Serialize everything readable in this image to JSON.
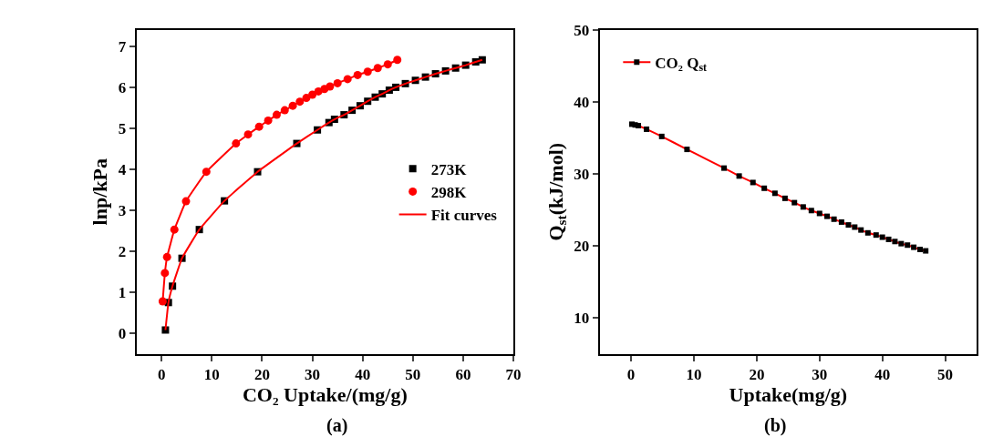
{
  "chart_data": [
    {
      "type": "scatter",
      "xlabel": "CO₂ Uptake/(mg/g)",
      "ylabel": "lnp/kPa",
      "xlim": [
        -5,
        70
      ],
      "ylim": [
        -0.5,
        7.4
      ],
      "xticks": [
        0,
        10,
        20,
        30,
        40,
        50,
        60,
        70
      ],
      "yticks": [
        0,
        1,
        2,
        3,
        4,
        5,
        6,
        7
      ],
      "grid": false,
      "legend": "right",
      "annotations": [
        "(a)"
      ],
      "series": [
        {
          "name": "273K",
          "color": "#000000",
          "marker": "square",
          "x": [
            0.76,
            1.35,
            2.16,
            4.05,
            7.5,
            12.5,
            19.1,
            26.9,
            31,
            33.3,
            34.4,
            36.3,
            37.9,
            39.5,
            41,
            42.5,
            43.9,
            45.3,
            46.6,
            48.5,
            50.5,
            52.5,
            54.5,
            56.5,
            58.5,
            60.5,
            62.5,
            63.8
          ],
          "values": [
            0.08,
            0.75,
            1.15,
            1.83,
            2.53,
            3.23,
            3.94,
            4.63,
            4.96,
            5.14,
            5.22,
            5.33,
            5.44,
            5.55,
            5.66,
            5.76,
            5.84,
            5.93,
            6.0,
            6.09,
            6.17,
            6.25,
            6.33,
            6.4,
            6.47,
            6.54,
            6.62,
            6.67
          ]
        },
        {
          "name": "298K",
          "color": "#ff0000",
          "marker": "circle",
          "x": [
            0.21,
            0.65,
            1.08,
            2.54,
            4.85,
            8.9,
            14.8,
            17.2,
            19.4,
            21.2,
            22.9,
            24.5,
            26.1,
            27.5,
            28.8,
            30.0,
            31.2,
            32.4,
            33.5,
            35,
            37,
            39,
            41,
            43,
            45,
            46.9
          ],
          "values": [
            0.78,
            1.47,
            1.86,
            2.53,
            3.22,
            3.94,
            4.63,
            4.85,
            5.04,
            5.19,
            5.33,
            5.44,
            5.55,
            5.65,
            5.74,
            5.82,
            5.9,
            5.96,
            6.02,
            6.1,
            6.2,
            6.3,
            6.38,
            6.47,
            6.56,
            6.67
          ]
        },
        {
          "name": "Fit curves",
          "type": "line",
          "color": "#ff0000",
          "x": [
            0.76,
            1.35,
            2.16,
            4.05,
            7.5,
            12.5,
            19.1,
            26.9,
            31,
            33.3,
            34.4,
            36.3,
            37.9,
            39.5,
            41,
            42.5,
            43.9,
            45.3,
            46.6,
            48.5,
            50.5,
            52.5,
            54.5,
            56.5,
            58.5,
            60.5,
            62.5,
            63.8
          ],
          "values": [
            0.08,
            0.75,
            1.15,
            1.83,
            2.53,
            3.23,
            3.94,
            4.63,
            4.96,
            5.14,
            5.22,
            5.33,
            5.44,
            5.55,
            5.66,
            5.76,
            5.84,
            5.93,
            6.0,
            6.09,
            6.17,
            6.25,
            6.33,
            6.4,
            6.47,
            6.54,
            6.62,
            6.67
          ]
        },
        {
          "type": "line",
          "color": "#ff0000",
          "x": [
            0.21,
            0.65,
            1.08,
            2.54,
            4.85,
            8.9,
            14.8,
            17.2,
            19.4,
            21.2,
            22.9,
            24.5,
            26.1,
            27.5,
            28.8,
            30.0,
            31.2,
            32.4,
            33.5,
            35,
            37,
            39,
            41,
            43,
            45,
            46.9
          ],
          "values": [
            0.78,
            1.47,
            1.86,
            2.53,
            3.22,
            3.94,
            4.63,
            4.85,
            5.04,
            5.19,
            5.33,
            5.44,
            5.55,
            5.65,
            5.74,
            5.82,
            5.9,
            5.96,
            6.02,
            6.1,
            6.2,
            6.3,
            6.38,
            6.47,
            6.56,
            6.67
          ]
        }
      ]
    },
    {
      "type": "line",
      "xlabel": "Uptake(mg/g)",
      "ylabel": "Q$_{st}$(kJ/mol)",
      "xlim": [
        -5,
        55
      ],
      "ylim": [
        5,
        50
      ],
      "xticks": [
        0,
        10,
        20,
        30,
        40,
        50
      ],
      "yticks": [
        10,
        20,
        30,
        40,
        50
      ],
      "grid": false,
      "legend": "top left",
      "marker": "square",
      "annotations": [
        "(b)"
      ],
      "series": [
        {
          "name": "CO₂ Q$_{st}$",
          "color": "#ff0000",
          "x": [
            0.13,
            0.64,
            1.15,
            2.46,
            4.88,
            8.9,
            14.8,
            17.2,
            19.4,
            21.2,
            22.9,
            24.5,
            26.0,
            27.4,
            28.7,
            30.0,
            31.2,
            32.3,
            33.5,
            34.6,
            35.6,
            36.6,
            37.7,
            39,
            40,
            41,
            42,
            43,
            44,
            45,
            46,
            46.9
          ],
          "values": [
            36.9,
            36.8,
            36.7,
            36.2,
            35.2,
            33.4,
            30.8,
            29.7,
            28.8,
            28.0,
            27.3,
            26.6,
            26.0,
            25.4,
            24.9,
            24.5,
            24.1,
            23.7,
            23.3,
            22.9,
            22.6,
            22.2,
            21.8,
            21.5,
            21.2,
            20.9,
            20.6,
            20.3,
            20.1,
            19.8,
            19.5,
            19.3
          ],
          "colors": [
            "#000000",
            "#000000",
            "#000000",
            "#000000",
            "#000000",
            "#000000",
            "#000000",
            "#000000",
            "#000000",
            "#000000",
            "#000000",
            "#000000",
            "#000000",
            "#000000",
            "#000000",
            "#000000",
            "#000000",
            "#000000",
            "#000000",
            "#000000",
            "#000000",
            "#000000",
            "#000000",
            "#000000",
            "#000000",
            "#000000",
            "#000000",
            "#000000",
            "#000000",
            "#000000",
            "#000000",
            "#000000"
          ]
        }
      ]
    }
  ]
}
